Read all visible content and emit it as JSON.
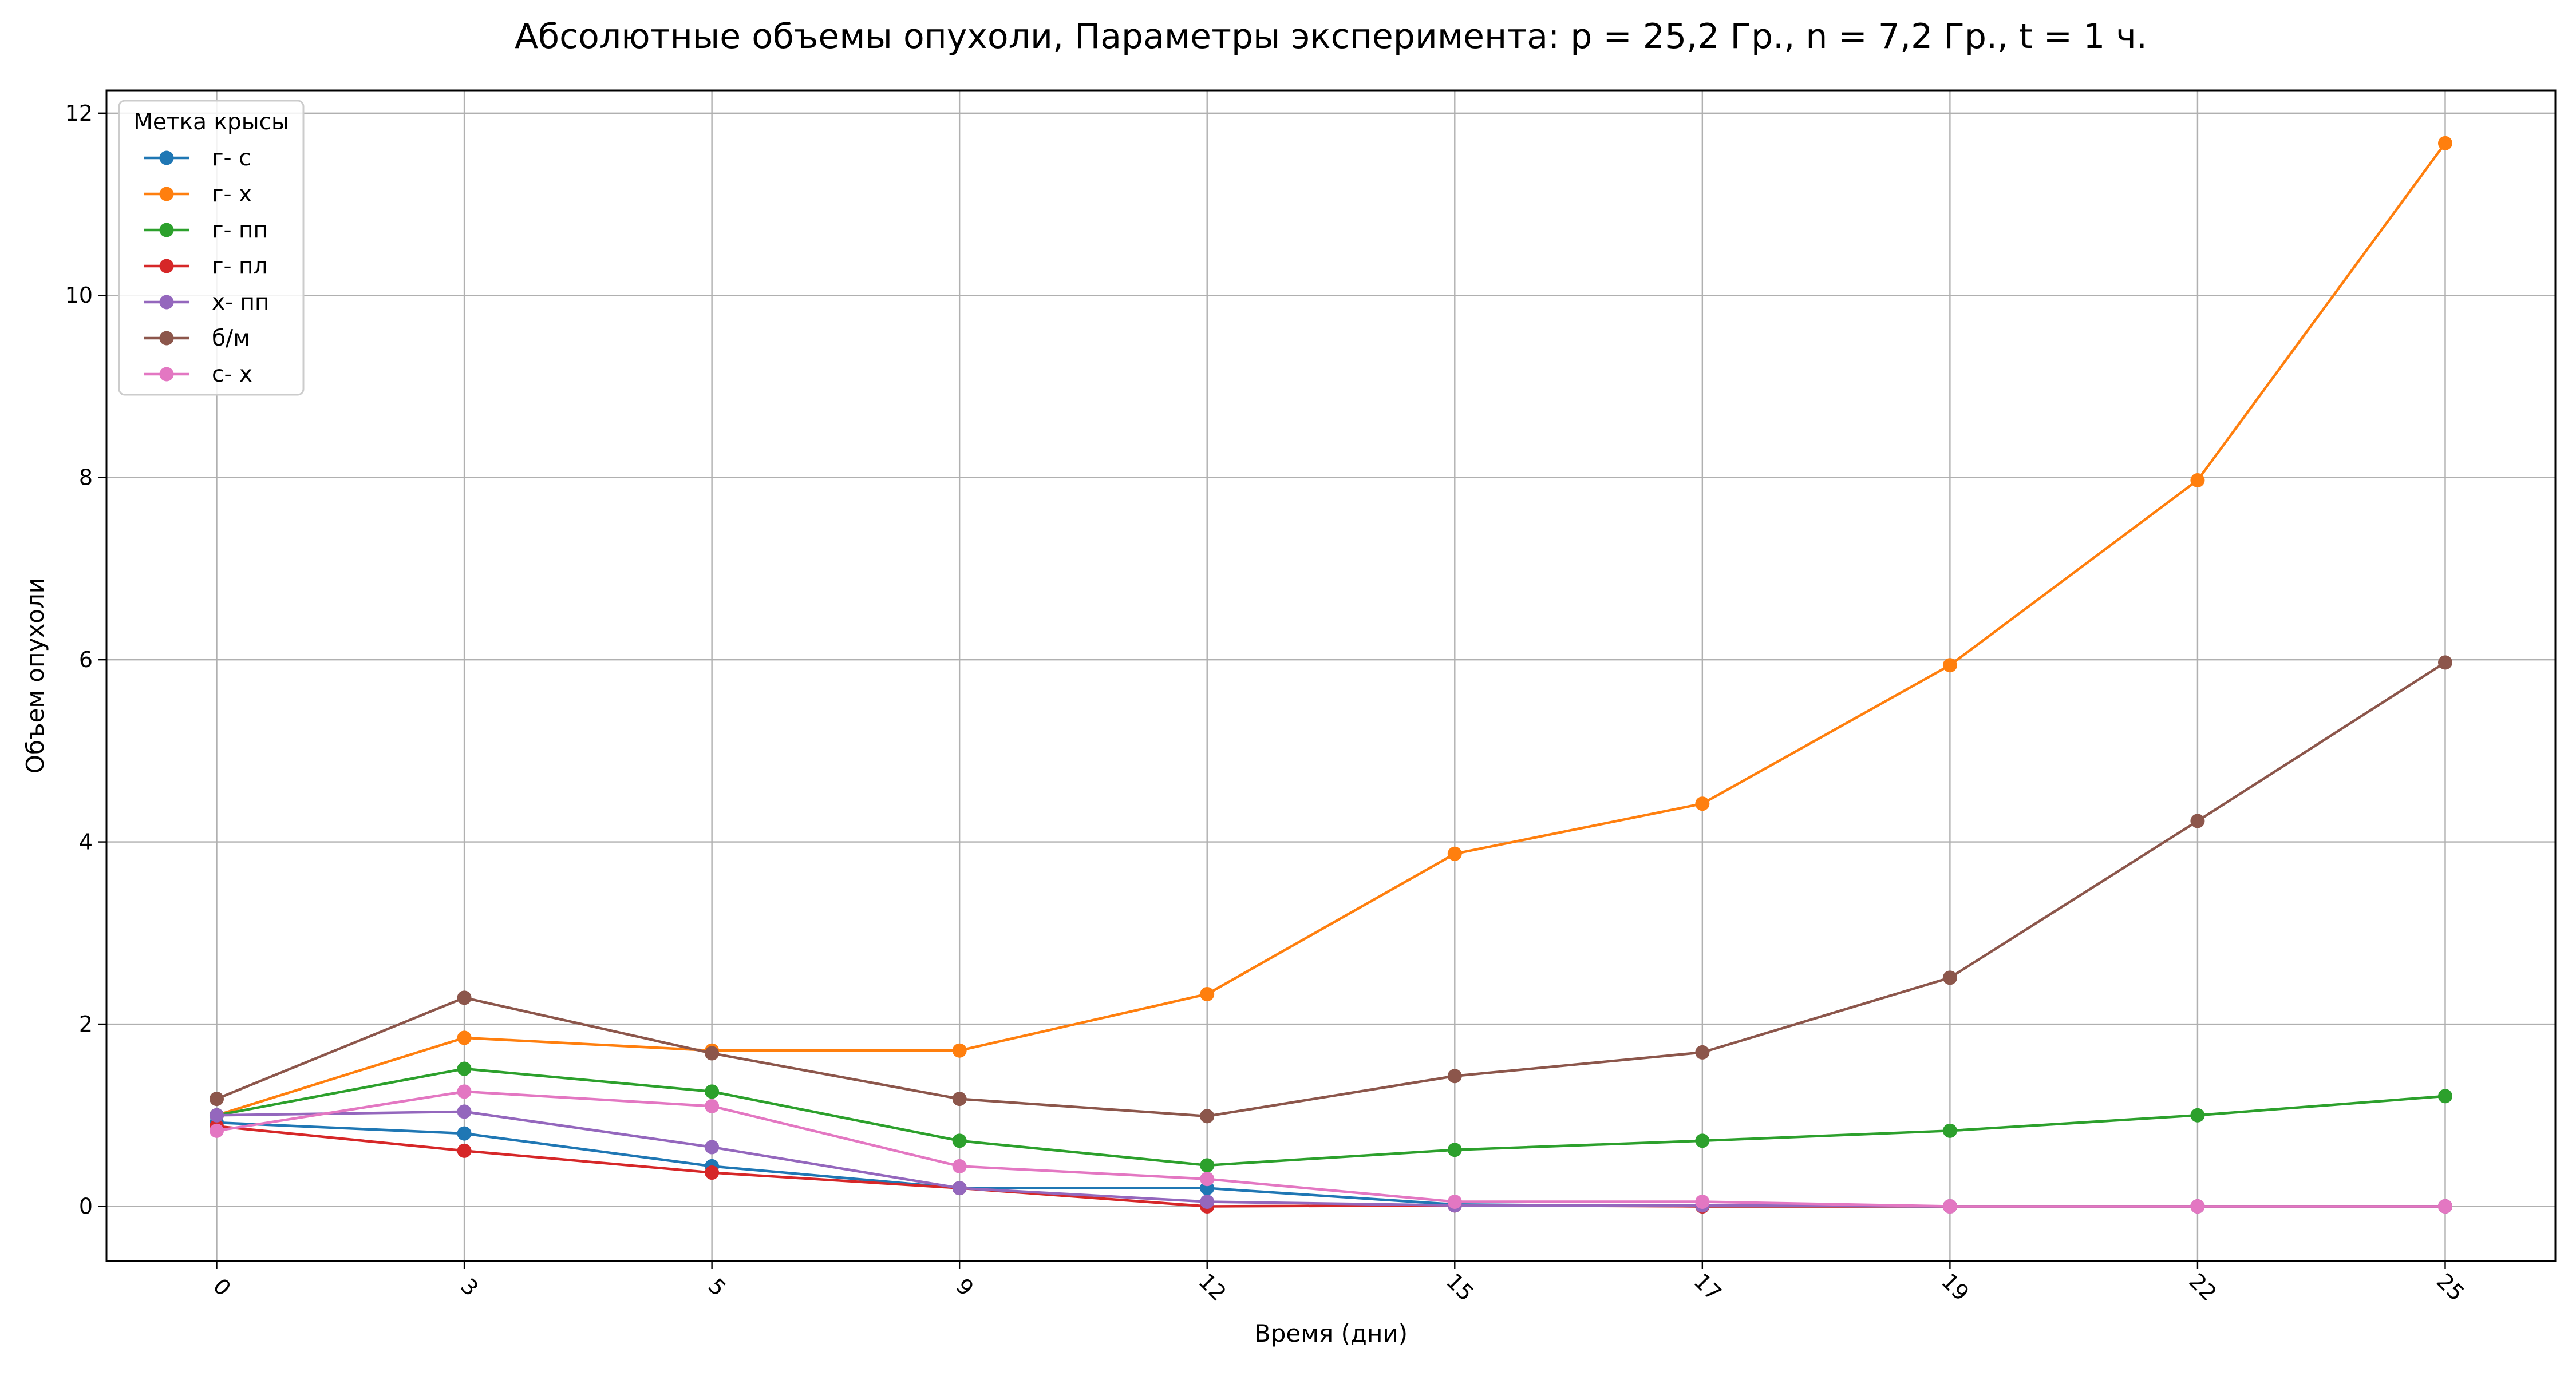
{
  "chart_data": {
    "type": "line",
    "title": "Абсолютные объемы опухоли, Параметры эксперимента: p = 25,2 Гр., n = 7,2 Гр., t = 1 ч.",
    "xlabel": "Время (дни)",
    "ylabel": "Объем опухоли",
    "categories": [
      "0",
      "3",
      "5",
      "9",
      "12",
      "15",
      "17",
      "19",
      "22",
      "25"
    ],
    "xtick_rotation_deg": 45,
    "ylim": [
      -0.6,
      12.25
    ],
    "yticks": [
      0,
      2,
      4,
      6,
      8,
      10,
      12
    ],
    "ytick_labels": [
      "0",
      "2",
      "4",
      "6",
      "8",
      "10",
      "12"
    ],
    "grid": true,
    "legend": {
      "title": "Метка крысы",
      "placement": "top-left"
    },
    "series": [
      {
        "name": "г- с",
        "color": "#1f77b4",
        "values": [
          0.92,
          0.8,
          0.44,
          0.2,
          0.2,
          0.02,
          0.0,
          0.0,
          0.0,
          0.0
        ]
      },
      {
        "name": "г- х",
        "color": "#ff7f0e",
        "values": [
          1.0,
          1.85,
          1.71,
          1.71,
          2.33,
          3.87,
          4.42,
          5.94,
          7.97,
          11.67
        ]
      },
      {
        "name": "г- пп",
        "color": "#2ca02c",
        "values": [
          1.0,
          1.51,
          1.26,
          0.72,
          0.45,
          0.62,
          0.72,
          0.83,
          1.0,
          1.21
        ]
      },
      {
        "name": "г- пл",
        "color": "#d62728",
        "values": [
          0.88,
          0.61,
          0.37,
          0.2,
          0.0,
          0.01,
          0.0,
          0.0,
          0.0,
          0.0
        ]
      },
      {
        "name": "х- пп",
        "color": "#9467bd",
        "values": [
          1.0,
          1.04,
          0.65,
          0.2,
          0.05,
          0.01,
          0.01,
          0.0,
          0.0,
          0.0
        ]
      },
      {
        "name": "б/м",
        "color": "#8c564b",
        "values": [
          1.18,
          2.29,
          1.68,
          1.18,
          0.99,
          1.43,
          1.69,
          2.51,
          4.23,
          5.97
        ]
      },
      {
        "name": "с- х",
        "color": "#e377c2",
        "values": [
          0.83,
          1.26,
          1.1,
          0.44,
          0.3,
          0.05,
          0.05,
          0.0,
          0.0,
          0.0
        ]
      }
    ]
  }
}
